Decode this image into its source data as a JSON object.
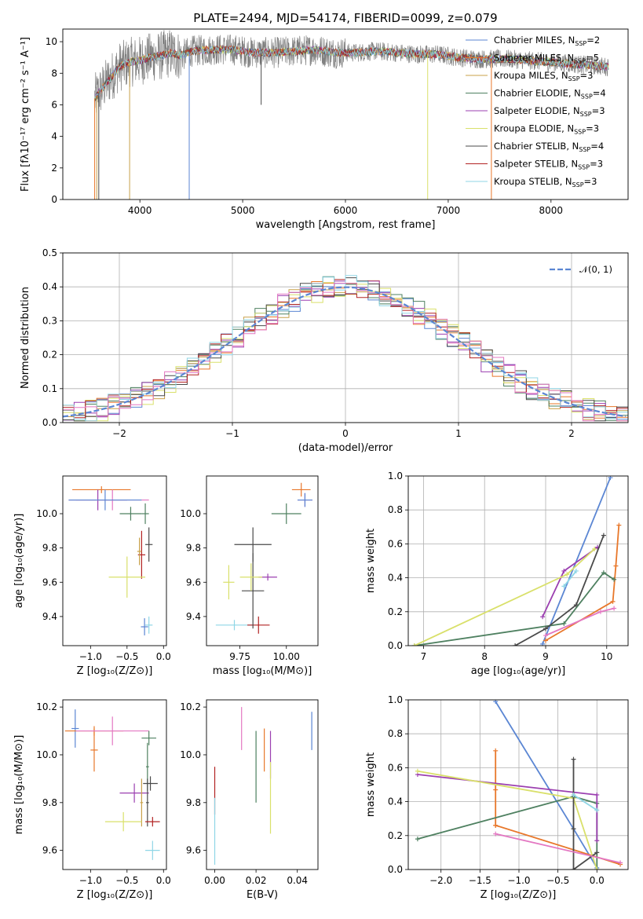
{
  "figure": {
    "title": "PLATE=2494, MJD=54174, FIBERID=0099, z=0.079"
  },
  "chart_data": [
    {
      "id": "spectrum",
      "type": "line",
      "title": "PLATE=2494, MJD=54174, FIBERID=0099, z=0.079",
      "xlabel": "wavelength [Angstrom, rest frame]",
      "ylabel": "Flux [fλ10⁻¹⁷ erg cm⁻² s⁻¹ A⁻¹]",
      "xlim": [
        3250,
        8750
      ],
      "ylim": [
        0,
        10.8
      ],
      "xticks": [
        "4000",
        "5000",
        "6000",
        "7000",
        "8000"
      ],
      "yticks": [
        "0",
        "2",
        "4",
        "6",
        "8",
        "10"
      ],
      "grid": false,
      "legend_position": "right",
      "series": [
        {
          "name": "Chabrier MILES, N_SSP=2",
          "color": "#5b86d3",
          "style": "model"
        },
        {
          "name": "Salpeter MILES, N_SSP=5",
          "color": "#e8772a",
          "style": "model"
        },
        {
          "name": "Kroupa MILES, N_SSP=3",
          "color": "#c9a14a",
          "style": "model"
        },
        {
          "name": "Chabrier ELODIE, N_SSP=4",
          "color": "#4e8060",
          "style": "model"
        },
        {
          "name": "Salpeter ELODIE, N_SSP=3",
          "color": "#9b3fb0",
          "style": "model"
        },
        {
          "name": "Kroupa ELODIE, N_SSP=3",
          "color": "#d9e06a",
          "style": "model"
        },
        {
          "name": "Chabrier STELIB, N_SSP=4",
          "color": "#4a4a4a",
          "style": "model"
        },
        {
          "name": "Salpeter STELIB, N_SSP=3",
          "color": "#b22222",
          "style": "model"
        },
        {
          "name": "Kroupa STELIB, N_SSP=3",
          "color": "#8fd6e6",
          "style": "model"
        }
      ],
      "continuum": {
        "x": [
          3560,
          3700,
          3800,
          3900,
          4000,
          4100,
          4200,
          4300,
          4400,
          4500,
          4700,
          4900,
          5100,
          5300,
          5500,
          5700,
          5900,
          6100,
          6300,
          6500,
          6700,
          6900,
          7100,
          7300,
          7420,
          7600,
          7800,
          8000,
          8200,
          8400,
          8560
        ],
        "y": [
          6.4,
          7.6,
          8.4,
          8.7,
          8.8,
          9.0,
          9.1,
          9.3,
          9.1,
          9.4,
          9.5,
          9.5,
          9.3,
          9.3,
          9.4,
          9.5,
          9.3,
          9.3,
          9.4,
          9.3,
          9.2,
          9.2,
          9.0,
          8.9,
          8.9,
          8.9,
          8.8,
          8.7,
          8.6,
          8.5,
          8.4
        ]
      },
      "dropouts": [
        {
          "x": 3560,
          "y": 0,
          "color": "#e8772a"
        },
        {
          "x": 3580,
          "y": 0,
          "color": "#c9a14a"
        },
        {
          "x": 3600,
          "y": 0,
          "color": "#4a4a4a"
        },
        {
          "x": 3900,
          "y": 0,
          "color": "#c9a14a"
        },
        {
          "x": 4480,
          "y": 0,
          "color": "#5b86d3"
        },
        {
          "x": 5180,
          "y": 6.0,
          "color": "#4a4a4a"
        },
        {
          "x": 6800,
          "y": 0,
          "color": "#d9e06a"
        },
        {
          "x": 7420,
          "y": 0,
          "color": "#e8772a"
        }
      ]
    },
    {
      "id": "residuals",
      "type": "step",
      "xlabel": "(data-model)/error",
      "ylabel": "Normed distribution",
      "xlim": [
        -2.5,
        2.5
      ],
      "ylim": [
        0,
        0.5
      ],
      "xticks": [
        {
          "v": -2,
          "label": "−2"
        },
        {
          "v": -1,
          "label": "−1"
        },
        {
          "v": 0,
          "label": "0"
        },
        {
          "v": 1,
          "label": "1"
        },
        {
          "v": 2,
          "label": "2"
        }
      ],
      "yticks": [
        {
          "v": 0,
          "label": "0.0"
        },
        {
          "v": 0.1,
          "label": "0.1"
        },
        {
          "v": 0.2,
          "label": "0.2"
        },
        {
          "v": 0.3,
          "label": "0.3"
        },
        {
          "v": 0.4,
          "label": "0.4"
        },
        {
          "v": 0.5,
          "label": "0.5"
        }
      ],
      "grid": true,
      "legend": {
        "label": "𝒩(0, 1)",
        "position": "top-right",
        "color": "#5b86d3"
      },
      "bin_width": 0.1
    },
    {
      "id": "age-vs-Z",
      "type": "errorbar",
      "xlabel": "Z [log₁₀(Z/Z⊙)]",
      "ylabel": "age  [log₁₀(age/yr)]",
      "xlim": [
        -1.38,
        0.04
      ],
      "ylim": [
        9.23,
        10.22
      ],
      "xticks": [
        {
          "v": -1.0,
          "label": "−1.0"
        },
        {
          "v": -0.5,
          "label": "−0.5"
        },
        {
          "v": 0.0,
          "label": "0.0"
        }
      ],
      "yticks": [
        {
          "v": 9.4,
          "label": "9.4"
        },
        {
          "v": 9.6,
          "label": "9.6"
        },
        {
          "v": 9.8,
          "label": "9.8"
        },
        {
          "v": 10.0,
          "label": "10.0"
        }
      ],
      "points": [
        {
          "x": -0.2,
          "xerr": 0.05,
          "y": 9.35,
          "yerr": 0.05,
          "color": "#8fd6e6"
        },
        {
          "x": -0.26,
          "xerr": 0.05,
          "y": 9.34,
          "yerr": 0.05,
          "color": "#5b86d3"
        },
        {
          "x": -0.25,
          "xerr": 0.05,
          "y": 10.0,
          "yerr": 0.06,
          "color": "#4e8060"
        },
        {
          "x": -0.3,
          "xerr": 0.05,
          "y": 9.76,
          "yerr": 0.14,
          "color": "#b22222"
        },
        {
          "x": -0.33,
          "xerr": 0.03,
          "y": 9.78,
          "yerr": 0.08,
          "color": "#c9a14a"
        },
        {
          "x": -0.2,
          "xerr": 0.05,
          "y": 9.82,
          "yerr": 0.1,
          "color": "#4a4a4a"
        },
        {
          "x": -0.5,
          "xerr": 0.25,
          "y": 9.63,
          "yerr": 0.12,
          "color": "#d9e06a"
        },
        {
          "x": -0.45,
          "xerr": 0.15,
          "y": 10.0,
          "yerr": 0.04,
          "color": "#4e8060"
        },
        {
          "x": -0.85,
          "xerr": 0.4,
          "y": 10.14,
          "yerr": 0.02,
          "color": "#e8772a"
        },
        {
          "x": -0.9,
          "xerr": 0.4,
          "y": 10.08,
          "yerr": 0.06,
          "color": "#9b3fb0"
        },
        {
          "x": -0.7,
          "xerr": 0.5,
          "y": 10.08,
          "yerr": 0.06,
          "color": "#e377c2"
        },
        {
          "x": -0.8,
          "xerr": 0.5,
          "y": 10.08,
          "yerr": 0.06,
          "color": "#5b86d3"
        }
      ]
    },
    {
      "id": "age-vs-mass",
      "type": "errorbar",
      "xlabel": "mass [log₁₀(M/M⊙)]",
      "ylabel": "",
      "xlim": [
        9.57,
        10.17
      ],
      "ylim": [
        9.23,
        10.22
      ],
      "xticks": [
        {
          "v": 9.75,
          "label": "9.75"
        },
        {
          "v": 10.0,
          "label": "10.00"
        }
      ],
      "yticks": [
        {
          "v": 9.4,
          "label": "9.4"
        },
        {
          "v": 9.6,
          "label": "9.6"
        },
        {
          "v": 9.8,
          "label": "9.8"
        },
        {
          "v": 10.0,
          "label": "10.0"
        }
      ],
      "points": [
        {
          "x": 9.72,
          "xerr": 0.1,
          "y": 9.35,
          "yerr": 0.03,
          "color": "#8fd6e6"
        },
        {
          "x": 9.85,
          "xerr": 0.06,
          "y": 9.35,
          "yerr": 0.05,
          "color": "#b22222"
        },
        {
          "x": 9.82,
          "xerr": 0.06,
          "y": 9.55,
          "yerr": 0.22,
          "color": "#4a4a4a"
        },
        {
          "x": 9.9,
          "xerr": 0.05,
          "y": 9.63,
          "yerr": 0.02,
          "color": "#9b3fb0"
        },
        {
          "x": 9.81,
          "xerr": 0.06,
          "y": 9.63,
          "yerr": 0.08,
          "color": "#d9e06a"
        },
        {
          "x": 9.82,
          "xerr": 0.1,
          "y": 9.82,
          "yerr": 0.1,
          "color": "#4a4a4a"
        },
        {
          "x": 10.0,
          "xerr": 0.08,
          "y": 10.0,
          "yerr": 0.06,
          "color": "#4e8060"
        },
        {
          "x": 10.08,
          "xerr": 0.05,
          "y": 10.14,
          "yerr": 0.04,
          "color": "#e8772a"
        },
        {
          "x": 10.1,
          "xerr": 0.04,
          "y": 10.08,
          "yerr": 0.04,
          "color": "#9b3fb0"
        },
        {
          "x": 10.1,
          "xerr": 0.04,
          "y": 10.08,
          "yerr": 0.04,
          "color": "#5b86d3"
        },
        {
          "x": 9.69,
          "xerr": 0.03,
          "y": 9.6,
          "yerr": 0.1,
          "color": "#d9e06a"
        }
      ]
    },
    {
      "id": "massweight-vs-age",
      "type": "line",
      "xlabel": "age  [log₁₀(age/yr)]",
      "ylabel": "mass weight",
      "xlim": [
        6.75,
        10.35
      ],
      "ylim": [
        0,
        1.0
      ],
      "xticks": [
        {
          "v": 7,
          "label": "7"
        },
        {
          "v": 8,
          "label": "8"
        },
        {
          "v": 9,
          "label": "9"
        },
        {
          "v": 10,
          "label": "10"
        }
      ],
      "yticks": [
        {
          "v": 0,
          "label": "0.0"
        },
        {
          "v": 0.2,
          "label": "0.2"
        },
        {
          "v": 0.4,
          "label": "0.4"
        },
        {
          "v": 0.6,
          "label": "0.6"
        },
        {
          "v": 0.8,
          "label": "0.8"
        },
        {
          "v": 1.0,
          "label": "1.0"
        }
      ],
      "grid": true,
      "series": [
        {
          "color": "#5b86d3",
          "x": [
            8.95,
            10.06
          ],
          "y": [
            0.01,
            0.99
          ]
        },
        {
          "color": "#e8772a",
          "x": [
            9.0,
            10.1,
            10.15,
            10.2
          ],
          "y": [
            0.03,
            0.26,
            0.47,
            0.71
          ]
        },
        {
          "color": "#4e8060",
          "x": [
            6.85,
            9.3,
            9.95,
            10.12
          ],
          "y": [
            0.0,
            0.13,
            0.43,
            0.39
          ]
        },
        {
          "color": "#9b3fb0",
          "x": [
            8.95,
            9.3,
            9.85
          ],
          "y": [
            0.17,
            0.44,
            0.58
          ]
        },
        {
          "color": "#d9e06a",
          "x": [
            6.85,
            9.35,
            9.8
          ],
          "y": [
            0.0,
            0.42,
            0.57
          ]
        },
        {
          "color": "#4a4a4a",
          "x": [
            8.5,
            9.0,
            9.5,
            9.95
          ],
          "y": [
            0.0,
            0.1,
            0.24,
            0.65
          ]
        },
        {
          "color": "#8fd6e6",
          "x": [
            9.3,
            9.5
          ],
          "y": [
            0.35,
            0.44
          ]
        },
        {
          "color": "#e377c2",
          "x": [
            9.0,
            9.9,
            10.12
          ],
          "y": [
            0.06,
            0.2,
            0.22
          ]
        }
      ]
    },
    {
      "id": "mass-vs-Z",
      "type": "errorbar",
      "xlabel": "Z [log₁₀(Z/Z⊙)]",
      "ylabel": "mass [log₁₀(M/M⊙)]",
      "xlim": [
        -1.38,
        0.04
      ],
      "ylim": [
        9.52,
        10.23
      ],
      "xticks": [
        {
          "v": -1.0,
          "label": "−1.0"
        },
        {
          "v": -0.5,
          "label": "−0.5"
        },
        {
          "v": 0.0,
          "label": "0.0"
        }
      ],
      "yticks": [
        {
          "v": 9.6,
          "label": "9.6"
        },
        {
          "v": 9.8,
          "label": "9.8"
        },
        {
          "v": 10.0,
          "label": "10.0"
        },
        {
          "v": 10.2,
          "label": "10.2"
        }
      ],
      "points": [
        {
          "x": -1.21,
          "xerr": 0.05,
          "y": 10.11,
          "yerr": 0.08,
          "color": "#5b86d3"
        },
        {
          "x": -0.95,
          "xerr": 0.4,
          "y": 10.1,
          "yerr": 0.02,
          "color": "#e8772a"
        },
        {
          "x": -0.95,
          "xerr": 0.05,
          "y": 10.02,
          "yerr": 0.09,
          "color": "#e8772a"
        },
        {
          "x": -0.7,
          "xerr": 0.5,
          "y": 10.1,
          "yerr": 0.06,
          "color": "#e377c2"
        },
        {
          "x": -0.2,
          "xerr": 0.1,
          "y": 10.07,
          "yerr": 0.03,
          "color": "#4e8060"
        },
        {
          "x": -0.22,
          "xerr": 0.02,
          "y": 9.95,
          "yerr": 0.1,
          "color": "#4e8060"
        },
        {
          "x": -0.4,
          "xerr": 0.2,
          "y": 9.84,
          "yerr": 0.04,
          "color": "#9b3fb0"
        },
        {
          "x": -0.3,
          "xerr": 0.02,
          "y": 9.8,
          "yerr": 0.1,
          "color": "#c9a14a"
        },
        {
          "x": -0.18,
          "xerr": 0.1,
          "y": 9.88,
          "yerr": 0.03,
          "color": "#4a4a4a"
        },
        {
          "x": -0.22,
          "xerr": 0.02,
          "y": 9.8,
          "yerr": 0.1,
          "color": "#4a4a4a"
        },
        {
          "x": -0.55,
          "xerr": 0.25,
          "y": 9.72,
          "yerr": 0.04,
          "color": "#d9e06a"
        },
        {
          "x": -0.15,
          "xerr": 0.1,
          "y": 9.72,
          "yerr": 0.02,
          "color": "#b22222"
        },
        {
          "x": -0.15,
          "xerr": 0.1,
          "y": 9.6,
          "yerr": 0.04,
          "color": "#8fd6e6"
        }
      ]
    },
    {
      "id": "mass-vs-EBV",
      "type": "errorbar",
      "xlabel": "E(B-V)",
      "ylabel": "",
      "xlim": [
        -0.004,
        0.05
      ],
      "ylim": [
        9.52,
        10.23
      ],
      "xticks": [
        {
          "v": 0.0,
          "label": "0.00"
        },
        {
          "v": 0.02,
          "label": "0.02"
        },
        {
          "v": 0.04,
          "label": "0.04"
        }
      ],
      "yticks": [
        {
          "v": 9.6,
          "label": "9.6"
        },
        {
          "v": 9.8,
          "label": "9.8"
        },
        {
          "v": 10.0,
          "label": "10.0"
        },
        {
          "v": 10.2,
          "label": "10.2"
        }
      ],
      "points": [
        {
          "x": 0.0,
          "xerr": 0,
          "y": 9.85,
          "yerr": 0.1,
          "color": "#b22222"
        },
        {
          "x": 0.0,
          "xerr": 0,
          "y": 9.68,
          "yerr": 0.14,
          "color": "#8fd6e6"
        },
        {
          "x": 0.013,
          "xerr": 0,
          "y": 10.11,
          "yerr": 0.09,
          "color": "#e377c2"
        },
        {
          "x": 0.02,
          "xerr": 0,
          "y": 9.95,
          "yerr": 0.15,
          "color": "#4e8060"
        },
        {
          "x": 0.024,
          "xerr": 0,
          "y": 10.02,
          "yerr": 0.09,
          "color": "#e8772a"
        },
        {
          "x": 0.027,
          "xerr": 0,
          "y": 10.0,
          "yerr": 0.1,
          "color": "#9b3fb0"
        },
        {
          "x": 0.027,
          "xerr": 0,
          "y": 9.82,
          "yerr": 0.15,
          "color": "#d9e06a"
        },
        {
          "x": 0.047,
          "xerr": 0,
          "y": 10.1,
          "yerr": 0.08,
          "color": "#5b86d3"
        }
      ]
    },
    {
      "id": "massweight-vs-Z",
      "type": "line",
      "xlabel": "Z [log₁₀(Z/Z⊙)]",
      "ylabel": "mass weight",
      "xlim": [
        -2.42,
        0.4
      ],
      "ylim": [
        0,
        1.0
      ],
      "xticks": [
        {
          "v": -2.0,
          "label": "−2.0"
        },
        {
          "v": -1.5,
          "label": "−1.5"
        },
        {
          "v": -1.0,
          "label": "−1.0"
        },
        {
          "v": -0.5,
          "label": "−0.5"
        },
        {
          "v": 0.0,
          "label": "0.0"
        }
      ],
      "yticks": [
        {
          "v": 0,
          "label": "0.0"
        },
        {
          "v": 0.2,
          "label": "0.2"
        },
        {
          "v": 0.4,
          "label": "0.4"
        },
        {
          "v": 0.6,
          "label": "0.6"
        },
        {
          "v": 0.8,
          "label": "0.8"
        },
        {
          "v": 1.0,
          "label": "1.0"
        }
      ],
      "grid": true,
      "series": [
        {
          "color": "#5b86d3",
          "x": [
            -1.3,
            -0.3,
            0.0
          ],
          "y": [
            0.99,
            0.24,
            0.01
          ]
        },
        {
          "color": "#e8772a",
          "x": [
            -1.3,
            -1.3,
            -1.3,
            -1.3,
            0.3
          ],
          "y": [
            0.7,
            0.47,
            0.26,
            0.26,
            0.03
          ]
        },
        {
          "color": "#4e8060",
          "x": [
            -2.3,
            -0.3,
            0.0,
            0.0
          ],
          "y": [
            0.18,
            0.43,
            0.39,
            0.0
          ]
        },
        {
          "color": "#9b3fb0",
          "x": [
            -2.3,
            0.0,
            0.0
          ],
          "y": [
            0.56,
            0.44,
            0.17
          ]
        },
        {
          "color": "#d9e06a",
          "x": [
            -2.3,
            -0.3,
            0.0
          ],
          "y": [
            0.58,
            0.42,
            0.0
          ]
        },
        {
          "color": "#4a4a4a",
          "x": [
            -0.3,
            -0.3,
            -0.3,
            0.0
          ],
          "y": [
            0.65,
            0.24,
            0.0,
            0.1
          ]
        },
        {
          "color": "#8fd6e6",
          "x": [
            -0.3,
            0.0
          ],
          "y": [
            0.44,
            0.35
          ]
        },
        {
          "color": "#e377c2",
          "x": [
            -1.3,
            0.3
          ],
          "y": [
            0.21,
            0.04
          ]
        }
      ]
    }
  ]
}
